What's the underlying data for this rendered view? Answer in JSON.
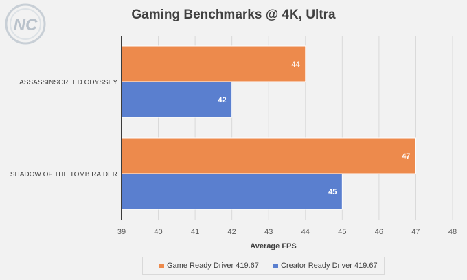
{
  "chart_data": {
    "type": "bar",
    "orientation": "horizontal",
    "title": "Gaming Benchmarks @ 4K, Ultra",
    "xlabel": "Average FPS",
    "ylabel": "",
    "xlim": [
      39,
      48
    ],
    "ticks": [
      39,
      40,
      41,
      42,
      43,
      44,
      45,
      46,
      47,
      48
    ],
    "categories": [
      "ASSASSINSCREED ODYSSEY",
      "SHADOW OF THE TOMB RAIDER"
    ],
    "series": [
      {
        "name": "Game Ready Driver 419.67",
        "color": "#ed8a4c",
        "values": [
          44,
          47
        ]
      },
      {
        "name": "Creator Ready Driver 419.67",
        "color": "#5a7fcf",
        "values": [
          42,
          45
        ]
      }
    ],
    "grid": "vertical",
    "legend_position": "bottom"
  },
  "logo_text": "NC"
}
